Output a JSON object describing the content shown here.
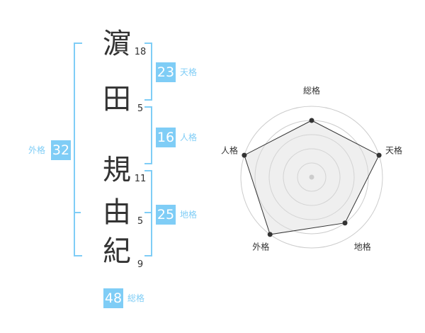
{
  "name": [
    {
      "char": "濵",
      "strokes": "18"
    },
    {
      "char": "田",
      "strokes": "5"
    },
    {
      "char": "規",
      "strokes": "11"
    },
    {
      "char": "由",
      "strokes": "5"
    },
    {
      "char": "紀",
      "strokes": "9"
    }
  ],
  "fortunes": {
    "tenkaku": {
      "value": "23",
      "label": "天格"
    },
    "jinkaku": {
      "value": "16",
      "label": "人格"
    },
    "chikaku": {
      "value": "25",
      "label": "地格"
    },
    "gaikaku": {
      "value": "32",
      "label": "外格"
    },
    "soukaku": {
      "value": "48",
      "label": "総格"
    }
  },
  "accent_color": "#7fcdf6",
  "chart_data": {
    "type": "radar",
    "categories": [
      "総格",
      "天格",
      "地格",
      "外格",
      "人格"
    ],
    "values": [
      4,
      5,
      4,
      5,
      5
    ],
    "max": 5,
    "grid": true
  }
}
